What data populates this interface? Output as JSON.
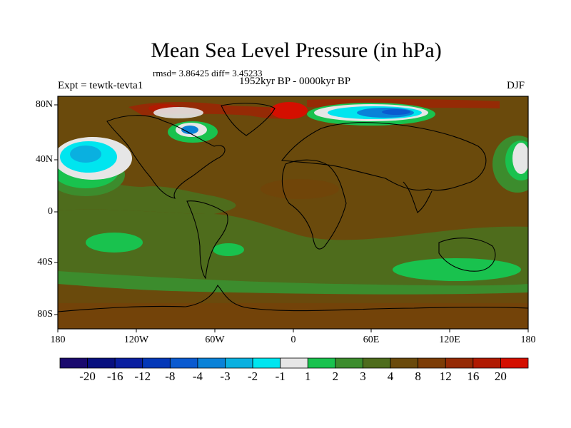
{
  "title": "Mean Sea Level Pressure (in hPa)",
  "stats": "rmsd= 3.86425 diff= 3.45233",
  "subtitle": "1952kyr BP - 0000kyr BP",
  "experiment": "Expt = tewtk-tevta1",
  "season": "DJF",
  "lat_ticks": [
    "80N",
    "40N",
    "0",
    "40S",
    "80S"
  ],
  "lon_ticks": [
    "180",
    "120W",
    "60W",
    "0",
    "60E",
    "120E",
    "180"
  ],
  "legend": {
    "colors": [
      "#1a0a6e",
      "#08107f",
      "#0a1fa0",
      "#0438b8",
      "#0a5ad0",
      "#0a82d8",
      "#0ab0e0",
      "#00e5ef",
      "#e6e6e6",
      "#19c24e",
      "#3c8c2d",
      "#4e6c1c",
      "#6a4a0c",
      "#7c3c06",
      "#952a05",
      "#b01a02",
      "#d40f00"
    ],
    "labels": [
      "-20",
      "-16",
      "-12",
      "-8",
      "-4",
      "-3",
      "-2",
      "-1",
      "1",
      "2",
      "3",
      "4",
      "8",
      "12",
      "16",
      "20"
    ]
  },
  "colors": {
    "ocean_base": "#6a4a0c",
    "green_mid": "#4e6c1c",
    "green_dark": "#3c8c2d",
    "green_bright": "#19c24e",
    "red": "#b01a02",
    "cyan": "#00e5ef",
    "blue": "#0a82d8",
    "grey": "#e6e6e6"
  }
}
